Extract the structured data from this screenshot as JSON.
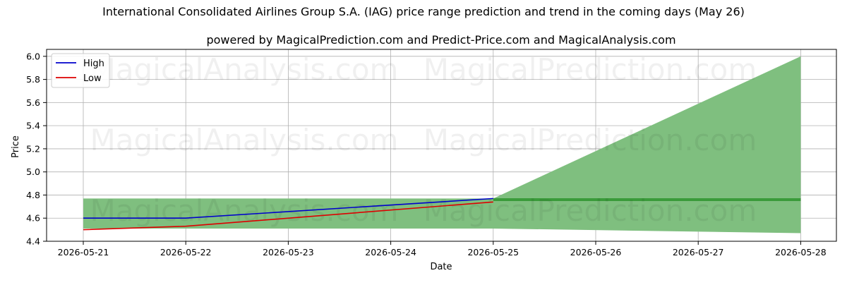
{
  "chart_data": {
    "type": "line",
    "title": "International Consolidated Airlines Group S.A. (IAG) price range prediction and trend in the coming days (May 26)",
    "subtitle": "powered by MagicalPrediction.com and Predict-Price.com and MagicalAnalysis.com",
    "xlabel": "Date",
    "ylabel": "Price",
    "x": [
      "2026-05-21",
      "2026-05-22",
      "2026-05-23",
      "2026-05-24",
      "2026-05-25",
      "2026-05-26",
      "2026-05-27",
      "2026-05-28"
    ],
    "x_ticks": [
      "2026-05-21",
      "2026-05-22",
      "2026-05-23",
      "2026-05-24",
      "2026-05-25",
      "2026-05-26",
      "2026-05-27",
      "2026-05-28"
    ],
    "y_ticks": [
      "4.4",
      "4.6",
      "4.8",
      "5.0",
      "5.2",
      "5.4",
      "5.6",
      "5.8",
      "6.0"
    ],
    "ylim": [
      4.4,
      6.06
    ],
    "grid": true,
    "legend_position": "top-left",
    "series": [
      {
        "name": "High",
        "color": "#0000cc",
        "x": [
          "2026-05-21",
          "2026-05-22",
          "2026-05-25"
        ],
        "values": [
          4.6,
          4.6,
          4.77
        ]
      },
      {
        "name": "Low",
        "color": "#dd0000",
        "x": [
          "2026-05-21",
          "2026-05-22",
          "2026-05-25"
        ],
        "values": [
          4.5,
          4.53,
          4.74
        ]
      }
    ],
    "band": {
      "color": "#7fbf7f",
      "x": [
        "2026-05-21",
        "2026-05-25",
        "2026-05-28"
      ],
      "upper": [
        4.77,
        4.77,
        6.0
      ],
      "lower": [
        4.51,
        4.51,
        4.47
      ]
    },
    "trend_line": {
      "color": "#3a9b3a",
      "x": [
        "2026-05-25",
        "2026-05-28"
      ],
      "values": [
        4.76,
        4.76
      ]
    },
    "watermarks": [
      "MagicalAnalysis.com",
      "MagicalPrediction.com"
    ]
  }
}
